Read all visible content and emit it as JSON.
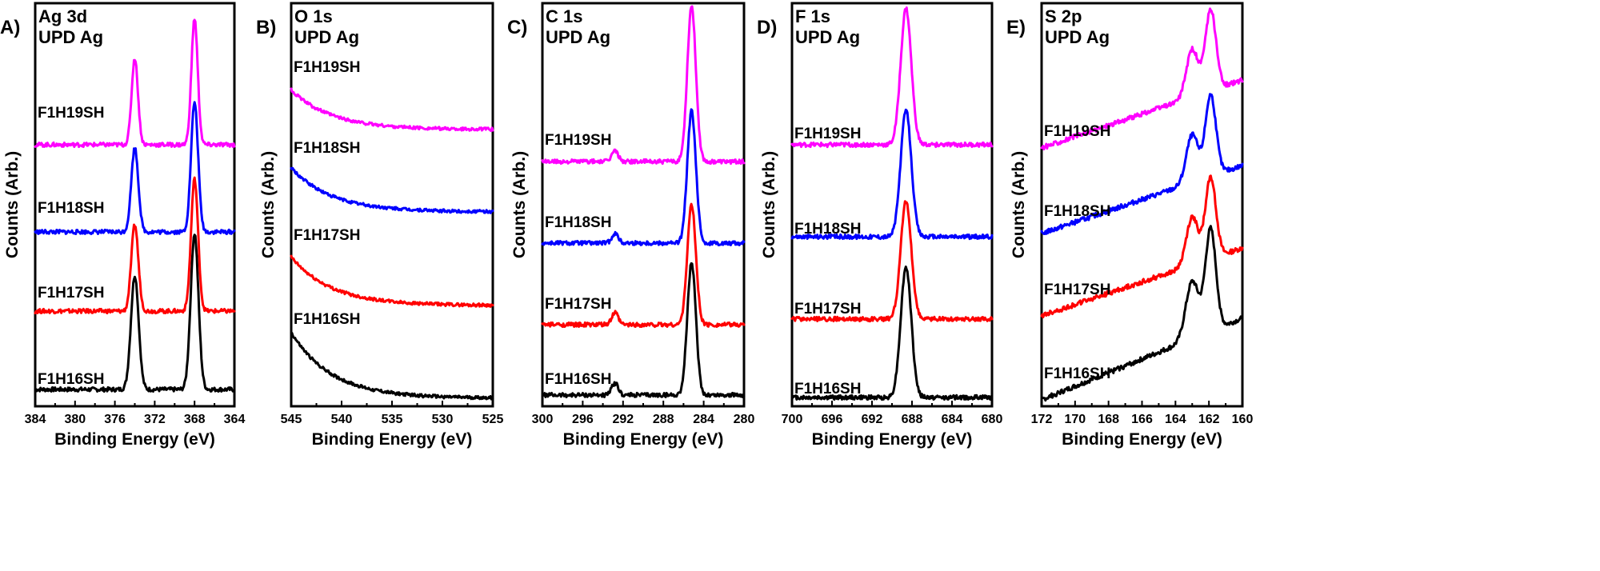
{
  "chart_data": [
    {
      "type": "line",
      "panel_letter": "A)",
      "title": "Ag 3d",
      "subtitle": "UPD Ag",
      "xlabel": "Binding Energy (eV)",
      "ylabel": "Counts (Arb.)",
      "xlim": [
        384,
        364
      ],
      "x_reversed": true,
      "xticks": [
        384,
        380,
        376,
        372,
        368,
        364
      ],
      "stack_order": [
        "F1H16SH",
        "F1H17SH",
        "F1H18SH",
        "F1H19SH"
      ],
      "series": [
        {
          "name": "F1H16SH",
          "color": "#000000",
          "peaks": [
            {
              "x": 374.0,
              "h": 0.95,
              "w": 0.55
            },
            {
              "x": 368.0,
              "h": 1.3,
              "w": 0.55
            }
          ],
          "background": 0.0
        },
        {
          "name": "F1H17SH",
          "color": "#ff0000",
          "peaks": [
            {
              "x": 374.0,
              "h": 0.72,
              "w": 0.5
            },
            {
              "x": 368.0,
              "h": 1.1,
              "w": 0.5
            }
          ],
          "background": 0.0
        },
        {
          "name": "F1H18SH",
          "color": "#0000ff",
          "peaks": [
            {
              "x": 374.0,
              "h": 0.7,
              "w": 0.5
            },
            {
              "x": 368.0,
              "h": 1.08,
              "w": 0.5
            }
          ],
          "background": 0.0
        },
        {
          "name": "F1H19SH",
          "color": "#ff00ff",
          "peaks": [
            {
              "x": 374.0,
              "h": 0.72,
              "w": 0.45
            },
            {
              "x": 368.0,
              "h": 1.05,
              "w": 0.45
            }
          ],
          "background": 0.0
        }
      ]
    },
    {
      "type": "line",
      "panel_letter": "B)",
      "title": "O 1s",
      "subtitle": "UPD Ag",
      "xlabel": "Binding Energy (eV)",
      "ylabel": "Counts (Arb.)",
      "xlim": [
        545,
        525
      ],
      "x_reversed": true,
      "xticks": [
        545,
        540,
        535,
        530,
        525
      ],
      "stack_order": [
        "F1H16SH",
        "F1H17SH",
        "F1H18SH",
        "F1H19SH"
      ],
      "series": [
        {
          "name": "F1H16SH",
          "color": "#000000",
          "peaks": [],
          "background": 0.75
        },
        {
          "name": "F1H17SH",
          "color": "#ff0000",
          "peaks": [],
          "background": 0.55
        },
        {
          "name": "F1H18SH",
          "color": "#0000ff",
          "peaks": [],
          "background": 0.5
        },
        {
          "name": "F1H19SH",
          "color": "#ff00ff",
          "peaks": [],
          "background": 0.45
        }
      ]
    },
    {
      "type": "line",
      "panel_letter": "C)",
      "title": "C 1s",
      "subtitle": "UPD Ag",
      "xlabel": "Binding Energy (eV)",
      "ylabel": "Counts (Arb.)",
      "xlim": [
        300,
        280
      ],
      "x_reversed": true,
      "xticks": [
        300,
        296,
        292,
        288,
        284,
        280
      ],
      "stack_order": [
        "F1H16SH",
        "F1H17SH",
        "F1H18SH",
        "F1H19SH"
      ],
      "series": [
        {
          "name": "F1H16SH",
          "color": "#000000",
          "peaks": [
            {
              "x": 292.8,
              "h": 0.1,
              "w": 0.45
            },
            {
              "x": 285.2,
              "h": 1.1,
              "w": 0.6
            }
          ],
          "background": 0.0
        },
        {
          "name": "F1H17SH",
          "color": "#ff0000",
          "peaks": [
            {
              "x": 292.8,
              "h": 0.1,
              "w": 0.45
            },
            {
              "x": 285.2,
              "h": 1.0,
              "w": 0.6
            }
          ],
          "background": 0.0
        },
        {
          "name": "F1H18SH",
          "color": "#0000ff",
          "peaks": [
            {
              "x": 292.8,
              "h": 0.08,
              "w": 0.45
            },
            {
              "x": 285.2,
              "h": 1.1,
              "w": 0.6
            }
          ],
          "background": 0.0
        },
        {
          "name": "F1H19SH",
          "color": "#ff00ff",
          "peaks": [
            {
              "x": 292.8,
              "h": 0.09,
              "w": 0.45
            },
            {
              "x": 285.2,
              "h": 1.3,
              "w": 0.6
            }
          ],
          "background": 0.0
        }
      ]
    },
    {
      "type": "line",
      "panel_letter": "D)",
      "title": "F 1s",
      "subtitle": "UPD Ag",
      "xlabel": "Binding Energy (eV)",
      "ylabel": "Counts (Arb.)",
      "xlim": [
        700,
        680
      ],
      "x_reversed": true,
      "xticks": [
        700,
        696,
        692,
        688,
        684,
        680
      ],
      "stack_order": [
        "F1H16SH",
        "F1H17SH",
        "F1H18SH",
        "F1H19SH"
      ],
      "series": [
        {
          "name": "F1H16SH",
          "color": "#000000",
          "peaks": [
            {
              "x": 688.6,
              "h": 1.05,
              "w": 0.75
            }
          ],
          "background": 0.0
        },
        {
          "name": "F1H17SH",
          "color": "#ff0000",
          "peaks": [
            {
              "x": 688.6,
              "h": 0.95,
              "w": 0.75
            }
          ],
          "background": 0.0
        },
        {
          "name": "F1H18SH",
          "color": "#0000ff",
          "peaks": [
            {
              "x": 688.6,
              "h": 1.02,
              "w": 0.75
            }
          ],
          "background": 0.0
        },
        {
          "name": "F1H19SH",
          "color": "#ff00ff",
          "peaks": [
            {
              "x": 688.6,
              "h": 1.1,
              "w": 0.75
            }
          ],
          "background": 0.0
        }
      ]
    },
    {
      "type": "line",
      "panel_letter": "E)",
      "title": "S 2p",
      "subtitle": "UPD Ag",
      "xlabel": "Binding Energy (eV)",
      "ylabel": "Counts (Arb.)",
      "xlim": [
        172,
        160
      ],
      "x_reversed": true,
      "xticks": [
        172,
        170,
        168,
        166,
        164,
        162,
        160
      ],
      "stack_order": [
        "F1H16SH",
        "F1H17SH",
        "F1H18SH",
        "F1H19SH"
      ],
      "series": [
        {
          "name": "F1H16SH",
          "color": "#000000",
          "peaks": [
            {
              "x": 163.0,
              "h": 0.42,
              "w": 0.55
            },
            {
              "x": 161.9,
              "h": 0.75,
              "w": 0.45
            }
          ],
          "background": -0.6
        },
        {
          "name": "F1H17SH",
          "color": "#ff0000",
          "peaks": [
            {
              "x": 163.0,
              "h": 0.35,
              "w": 0.5
            },
            {
              "x": 161.9,
              "h": 0.6,
              "w": 0.45
            }
          ],
          "background": -0.5
        },
        {
          "name": "F1H18SH",
          "color": "#0000ff",
          "peaks": [
            {
              "x": 163.0,
              "h": 0.35,
              "w": 0.5
            },
            {
              "x": 161.9,
              "h": 0.6,
              "w": 0.45
            }
          ],
          "background": -0.5
        },
        {
          "name": "F1H19SH",
          "color": "#ff00ff",
          "peaks": [
            {
              "x": 163.0,
              "h": 0.35,
              "w": 0.5
            },
            {
              "x": 161.9,
              "h": 0.6,
              "w": 0.45
            }
          ],
          "background": -0.5
        }
      ]
    }
  ]
}
